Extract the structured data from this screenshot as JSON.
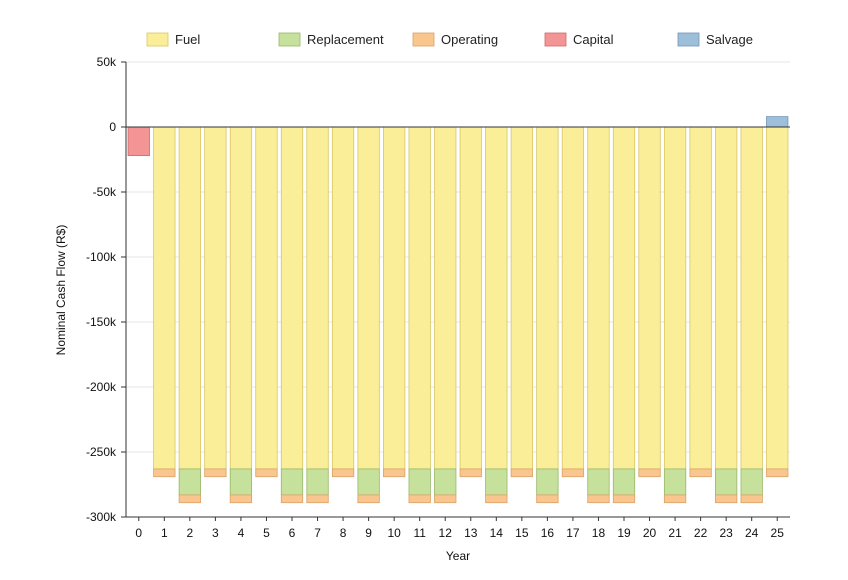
{
  "chart_data": {
    "type": "bar",
    "stacked": true,
    "xlabel": "Year",
    "ylabel": "Nominal Cash Flow (R$)",
    "ylim": [
      -300000,
      50000
    ],
    "yticks": [
      50000,
      0,
      -50000,
      -100000,
      -150000,
      -200000,
      -250000,
      -300000
    ],
    "ytick_labels": [
      "50k",
      "0",
      "-50k",
      "-100k",
      "-150k",
      "-200k",
      "-250k",
      "-300k"
    ],
    "grid": "horizontal",
    "legend": "top",
    "categories": [
      "0",
      "1",
      "2",
      "3",
      "4",
      "5",
      "6",
      "7",
      "8",
      "9",
      "10",
      "11",
      "12",
      "13",
      "14",
      "15",
      "16",
      "17",
      "18",
      "19",
      "20",
      "21",
      "22",
      "23",
      "24",
      "25"
    ],
    "series": [
      {
        "name": "Fuel",
        "color": "#fbee99",
        "stroke": "#d8c664",
        "values": [
          0,
          -263000,
          -263000,
          -263000,
          -263000,
          -263000,
          -263000,
          -263000,
          -263000,
          -263000,
          -263000,
          -263000,
          -263000,
          -263000,
          -263000,
          -263000,
          -263000,
          -263000,
          -263000,
          -263000,
          -263000,
          -263000,
          -263000,
          -263000,
          -263000,
          -263000
        ]
      },
      {
        "name": "Replacement",
        "color": "#c6e19b",
        "stroke": "#98b86a",
        "values": [
          0,
          0,
          -20000,
          0,
          -20000,
          0,
          -20000,
          -20000,
          0,
          -20000,
          0,
          -20000,
          -20000,
          0,
          -20000,
          0,
          -20000,
          0,
          -20000,
          -20000,
          0,
          -20000,
          0,
          -20000,
          -20000,
          0
        ]
      },
      {
        "name": "Operating",
        "color": "#f9c690",
        "stroke": "#dba165",
        "values": [
          0,
          -6000,
          -6000,
          -6000,
          -6000,
          -6000,
          -6000,
          -6000,
          -6000,
          -6000,
          -6000,
          -6000,
          -6000,
          -6000,
          -6000,
          -6000,
          -6000,
          -6000,
          -6000,
          -6000,
          -6000,
          -6000,
          -6000,
          -6000,
          -6000,
          -6000
        ]
      },
      {
        "name": "Capital",
        "color": "#f39595",
        "stroke": "#d06a6a",
        "values": [
          -22000,
          0,
          0,
          0,
          0,
          0,
          0,
          0,
          0,
          0,
          0,
          0,
          0,
          0,
          0,
          0,
          0,
          0,
          0,
          0,
          0,
          0,
          0,
          0,
          0,
          0
        ]
      },
      {
        "name": "Salvage",
        "color": "#9dbfda",
        "stroke": "#7296b5",
        "values": [
          0,
          0,
          0,
          0,
          0,
          0,
          0,
          0,
          0,
          0,
          0,
          0,
          0,
          0,
          0,
          0,
          0,
          0,
          0,
          0,
          0,
          0,
          0,
          0,
          0,
          8000
        ]
      }
    ]
  }
}
